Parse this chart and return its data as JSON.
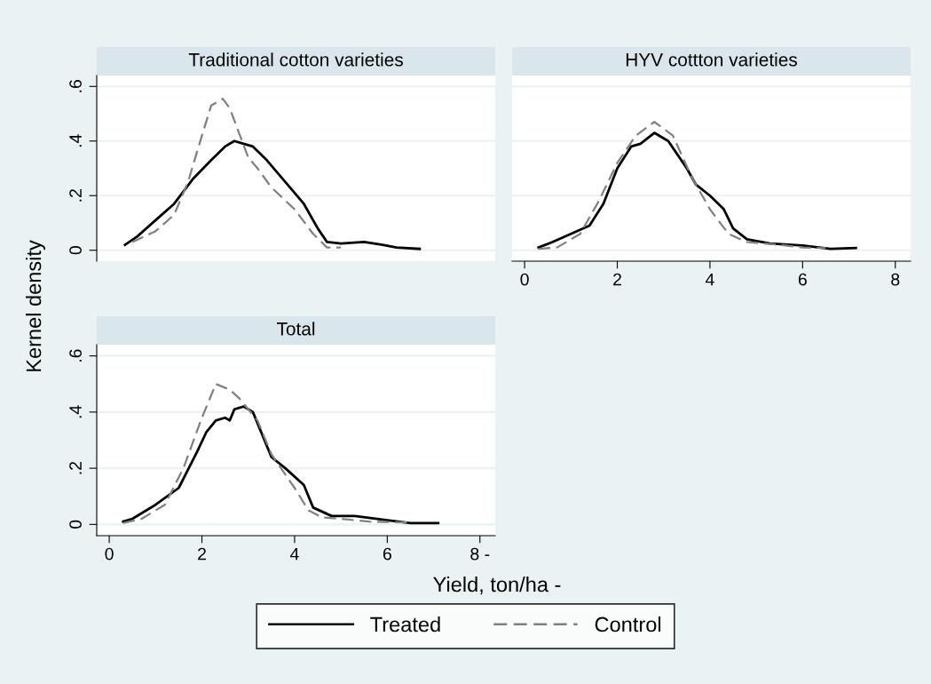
{
  "chart_data": [
    {
      "type": "line",
      "title": "Traditional cotton varieties",
      "ylabel": "Kernel density",
      "xlim": [
        -0.27,
        8.33
      ],
      "ylim": [
        -0.04,
        0.64
      ],
      "xticks": [
        0,
        2,
        4,
        6,
        8
      ],
      "yticks": [
        {
          "value": 0,
          "label": "0"
        },
        {
          "value": 0.2,
          "label": ".2"
        },
        {
          "value": 0.4,
          "label": ".4"
        },
        {
          "value": 0.6,
          "label": ".6"
        }
      ],
      "tick_labels": "y",
      "grid": "y",
      "legend": "bottom",
      "series": [
        {
          "name": "Treated",
          "color": "#000000",
          "line_style": "solid",
          "x": [
            0.34,
            0.6,
            1.0,
            1.4,
            1.8,
            2.2,
            2.5,
            2.7,
            2.9,
            3.1,
            3.4,
            3.8,
            4.2,
            4.5,
            4.7,
            5.0,
            5.5,
            5.9,
            6.2,
            6.7
          ],
          "values": [
            0.02,
            0.05,
            0.11,
            0.17,
            0.26,
            0.33,
            0.38,
            0.4,
            0.39,
            0.38,
            0.33,
            0.25,
            0.17,
            0.08,
            0.03,
            0.025,
            0.03,
            0.02,
            0.01,
            0.005
          ]
        },
        {
          "name": "Control",
          "color": "#808080",
          "line_style": "dashed",
          "x": [
            0.5,
            1.0,
            1.4,
            1.7,
            2.0,
            2.2,
            2.45,
            2.6,
            2.8,
            3.0,
            3.2,
            3.5,
            4.0,
            4.4,
            4.7,
            5.0
          ],
          "values": [
            0.03,
            0.07,
            0.13,
            0.25,
            0.42,
            0.53,
            0.555,
            0.52,
            0.43,
            0.34,
            0.3,
            0.23,
            0.15,
            0.06,
            0.01,
            0.01
          ]
        }
      ]
    },
    {
      "type": "line",
      "title": "HYV cottton varieties",
      "xlim": [
        -0.27,
        8.33
      ],
      "ylim": [
        -0.04,
        0.64
      ],
      "xticks": [
        0,
        2,
        4,
        6,
        8
      ],
      "yticks": [
        {
          "value": 0,
          "label": "0"
        },
        {
          "value": 0.2,
          "label": ".2"
        },
        {
          "value": 0.4,
          "label": ".4"
        },
        {
          "value": 0.6,
          "label": ".6"
        }
      ],
      "tick_labels": "x",
      "grid": "y",
      "legend": "bottom",
      "series": [
        {
          "name": "Treated",
          "color": "#000000",
          "line_style": "solid",
          "x": [
            0.3,
            0.6,
            1.0,
            1.4,
            1.7,
            2.0,
            2.3,
            2.5,
            2.8,
            3.1,
            3.5,
            3.7,
            4.0,
            4.3,
            4.5,
            4.8,
            5.3,
            6.0,
            6.6,
            7.15
          ],
          "values": [
            0.01,
            0.03,
            0.06,
            0.09,
            0.17,
            0.3,
            0.38,
            0.39,
            0.43,
            0.4,
            0.3,
            0.24,
            0.2,
            0.15,
            0.08,
            0.04,
            0.025,
            0.017,
            0.005,
            0.008
          ]
        },
        {
          "name": "Control",
          "color": "#808080",
          "line_style": "dashed",
          "x": [
            0.3,
            0.7,
            1.2,
            1.6,
            2.0,
            2.4,
            2.8,
            3.2,
            3.6,
            4.0,
            4.4,
            4.8,
            5.5,
            6.0,
            6.5
          ],
          "values": [
            0.005,
            0.01,
            0.06,
            0.18,
            0.32,
            0.42,
            0.47,
            0.42,
            0.27,
            0.15,
            0.06,
            0.03,
            0.02,
            0.01,
            0.008
          ]
        }
      ]
    },
    {
      "type": "line",
      "title": "Total",
      "xlabel": "Yield, ton/ha -",
      "xlim": [
        -0.27,
        8.33
      ],
      "ylim": [
        -0.04,
        0.64
      ],
      "xticks": [
        0,
        2,
        4,
        6,
        {
          "value": 8,
          "label": "8 -"
        }
      ],
      "yticks": [
        {
          "value": 0,
          "label": "0"
        },
        {
          "value": 0.2,
          "label": ".2"
        },
        {
          "value": 0.4,
          "label": ".4"
        },
        {
          "value": 0.6,
          "label": ".6"
        }
      ],
      "grid": "y",
      "legend": "bottom",
      "series": [
        {
          "name": "Treated",
          "color": "#000000",
          "line_style": "solid",
          "x": [
            0.3,
            0.5,
            1.0,
            1.5,
            1.9,
            2.1,
            2.3,
            2.5,
            2.6,
            2.7,
            2.9,
            3.1,
            3.5,
            3.8,
            4.2,
            4.4,
            4.8,
            5.3,
            6.0,
            6.5,
            7.1
          ],
          "values": [
            0.01,
            0.02,
            0.07,
            0.13,
            0.26,
            0.33,
            0.37,
            0.38,
            0.37,
            0.41,
            0.42,
            0.4,
            0.24,
            0.2,
            0.14,
            0.06,
            0.03,
            0.03,
            0.015,
            0.005,
            0.005
          ]
        },
        {
          "name": "Control",
          "color": "#808080",
          "line_style": "dashed",
          "x": [
            0.3,
            0.7,
            1.2,
            1.6,
            2.0,
            2.3,
            2.6,
            2.8,
            3.2,
            3.5,
            4.0,
            4.3,
            4.6,
            5.0,
            5.6,
            6.5
          ],
          "values": [
            0.005,
            0.02,
            0.07,
            0.2,
            0.38,
            0.5,
            0.48,
            0.45,
            0.37,
            0.25,
            0.13,
            0.05,
            0.025,
            0.02,
            0.01,
            0.007
          ]
        }
      ]
    }
  ]
}
